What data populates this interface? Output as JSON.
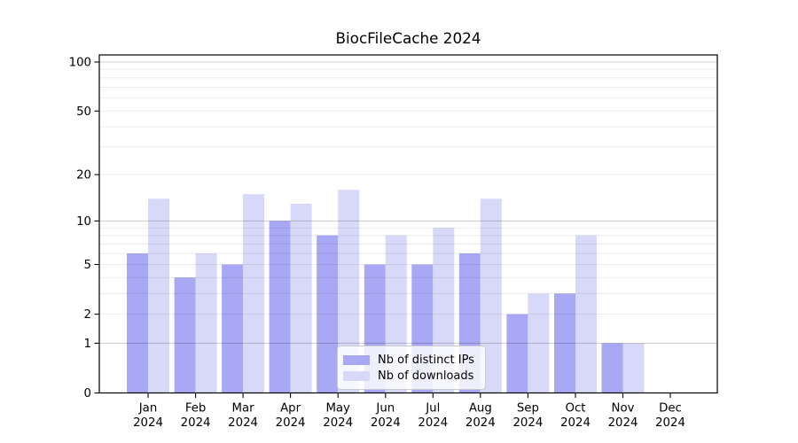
{
  "title": "BiocFileCache 2024",
  "chart_data": {
    "type": "bar",
    "title": "BiocFileCache 2024",
    "categories": [
      "Jan 2024",
      "Feb 2024",
      "Mar 2024",
      "Apr 2024",
      "May 2024",
      "Jun 2024",
      "Jul 2024",
      "Aug 2024",
      "Sep 2024",
      "Oct 2024",
      "Nov 2024",
      "Dec 2024"
    ],
    "series": [
      {
        "name": "Nb of distinct IPs",
        "color": "#a8a8f4",
        "values": [
          6,
          4,
          5,
          10,
          8,
          5,
          5,
          6,
          2,
          3,
          1,
          0
        ]
      },
      {
        "name": "Nb of downloads",
        "color": "#d8d8f8",
        "values": [
          14,
          6,
          15,
          13,
          16,
          8,
          9,
          14,
          3,
          8,
          1,
          0
        ]
      }
    ],
    "xlabel": "",
    "ylabel": "",
    "yscale": "log1p",
    "yticks": [
      0,
      1,
      2,
      5,
      10,
      20,
      50,
      100
    ],
    "ylim": [
      0,
      112
    ],
    "grid": {
      "major": [
        1,
        10,
        100
      ],
      "minor": [
        2,
        3,
        4,
        5,
        6,
        7,
        8,
        9,
        20,
        30,
        40,
        50,
        60,
        70,
        80,
        90
      ]
    },
    "legend_position": "lower center",
    "bar_group": "side-by-side"
  }
}
